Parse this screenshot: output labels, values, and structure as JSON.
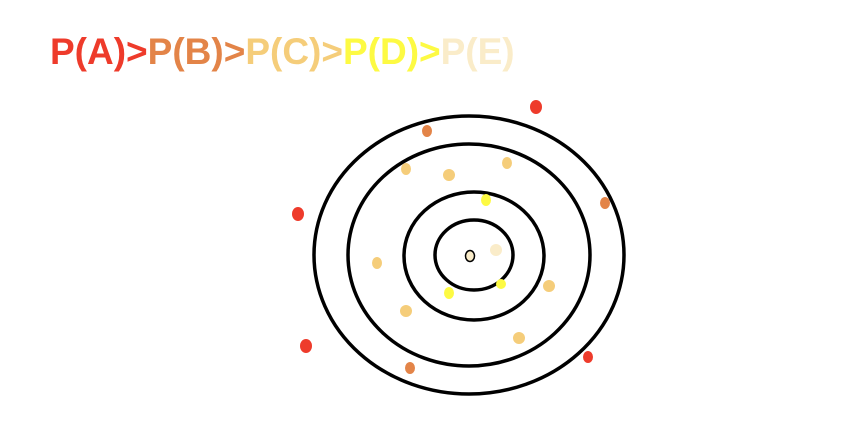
{
  "title": {
    "segments": [
      {
        "text": "P(A)",
        "color": "#ee3b2b"
      },
      {
        "text": ">",
        "color": "#ee3b2b"
      },
      {
        "text": "P(B)",
        "color": "#e38448"
      },
      {
        "text": ">",
        "color": "#e38448"
      },
      {
        "text": "P(C)",
        "color": "#f5cd7a"
      },
      {
        "text": ">",
        "color": "#f5cd7a"
      },
      {
        "text": "P(D)",
        "color": "#fdfa43"
      },
      {
        "text": ">",
        "color": "#fdfa43"
      },
      {
        "text": "P(E)",
        "color": "#faecc9"
      }
    ]
  },
  "colors": {
    "A": "#ee3b2b",
    "B": "#e38448",
    "C": "#f5cd7a",
    "D": "#fdfa43",
    "E": "#faecc9",
    "ring_stroke": "#000000"
  }
}
